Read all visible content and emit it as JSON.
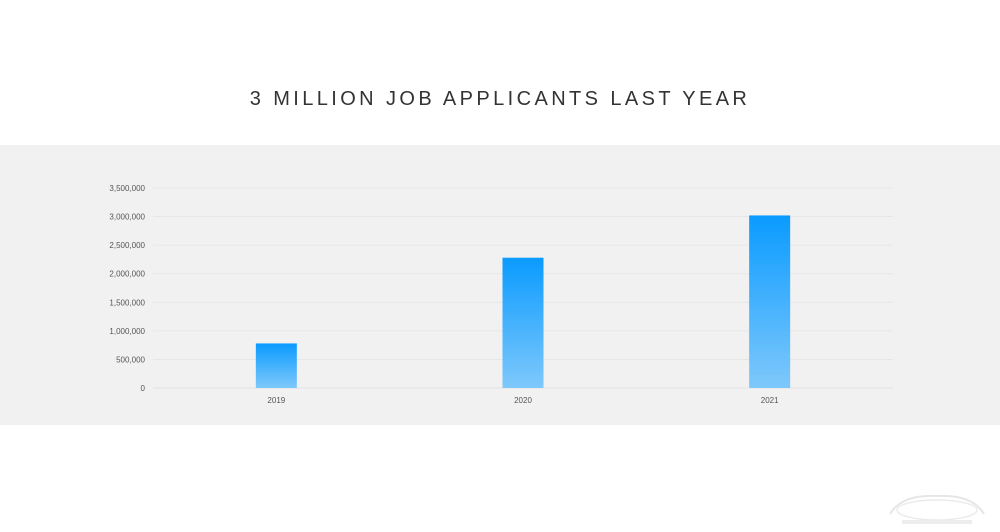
{
  "title": "3 MILLION JOB APPLICANTS LAST YEAR",
  "colors": {
    "bar_top": "#0a9bff",
    "bar_bottom": "#7ec8fb",
    "grid": "#e4e4e4",
    "band": "#f1f1f1"
  },
  "chart_data": {
    "type": "bar",
    "title": "3 MILLION JOB APPLICANTS LAST YEAR",
    "xlabel": "",
    "ylabel": "",
    "categories": [
      "2019",
      "2020",
      "2021"
    ],
    "values": [
      780000,
      2280000,
      3020000
    ],
    "ylim": [
      0,
      3500000
    ],
    "yticks": [
      0,
      500000,
      1000000,
      1500000,
      2000000,
      2500000,
      3000000,
      3500000
    ],
    "ytick_labels": [
      "0",
      "500,000",
      "1,000,000",
      "1,500,000",
      "2,000,000",
      "2,500,000",
      "3,000,000",
      "3,500,000"
    ],
    "grid": true,
    "legend": "none"
  }
}
